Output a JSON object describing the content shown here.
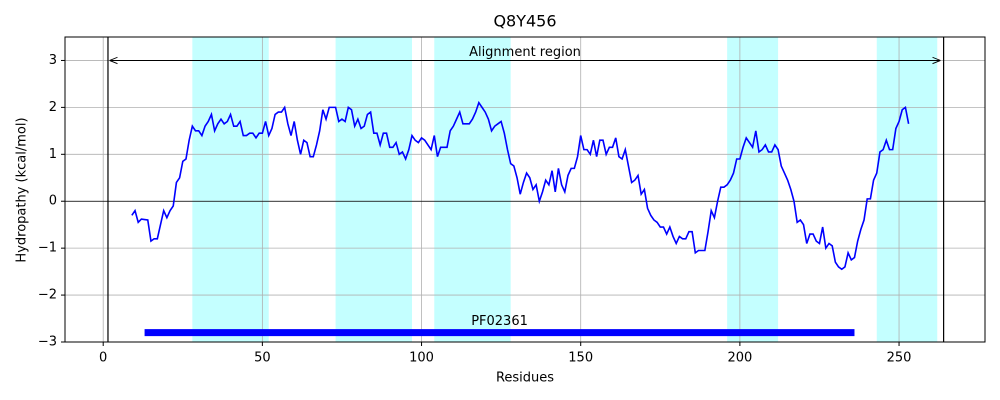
{
  "chart_data": {
    "type": "line",
    "title": "Q8Y456",
    "xlabel": "Residues",
    "ylabel": "Hydropathy (kcal/mol)",
    "x": [
      9,
      10,
      11,
      12,
      13,
      14,
      15,
      16,
      17,
      18,
      19,
      20,
      21,
      22,
      23,
      24,
      25,
      26,
      27,
      28,
      29,
      30,
      31,
      32,
      33,
      34,
      35,
      36,
      37,
      38,
      39,
      40,
      41,
      42,
      43,
      44,
      45,
      46,
      47,
      48,
      49,
      50,
      51,
      52,
      53,
      54,
      55,
      56,
      57,
      58,
      59,
      60,
      61,
      62,
      63,
      64,
      65,
      66,
      67,
      68,
      69,
      70,
      71,
      72,
      73,
      74,
      75,
      76,
      77,
      78,
      79,
      80,
      81,
      82,
      83,
      84,
      85,
      86,
      87,
      88,
      89,
      90,
      91,
      92,
      93,
      94,
      95,
      96,
      97,
      98,
      99,
      100,
      101,
      102,
      103,
      104,
      105,
      106,
      107,
      108,
      109,
      110,
      111,
      112,
      113,
      114,
      115,
      116,
      117,
      118,
      119,
      120,
      121,
      122,
      123,
      124,
      125,
      126,
      127,
      128,
      129,
      130,
      131,
      132,
      133,
      134,
      135,
      136,
      137,
      138,
      139,
      140,
      141,
      142,
      143,
      144,
      145,
      146,
      147,
      148,
      149,
      150,
      151,
      152,
      153,
      154,
      155,
      156,
      157,
      158,
      159,
      160,
      161,
      162,
      163,
      164,
      165,
      166,
      167,
      168,
      169,
      170,
      171,
      172,
      173,
      174,
      175,
      176,
      177,
      178,
      179,
      180,
      181,
      182,
      183,
      184,
      185,
      186,
      187,
      188,
      189,
      190,
      191,
      192,
      193,
      194,
      195,
      196,
      197,
      198,
      199,
      200,
      201,
      202,
      203,
      204,
      205,
      206,
      207,
      208,
      209,
      210,
      211,
      212,
      213,
      214,
      215,
      216,
      217,
      218,
      219,
      220,
      221,
      222,
      223,
      224,
      225,
      226,
      227,
      228,
      229,
      230,
      231,
      232,
      233,
      234,
      235,
      236,
      237,
      238,
      239,
      240,
      241,
      242,
      243,
      244,
      245,
      246,
      247,
      248,
      249,
      250,
      251,
      252,
      253
    ],
    "series": [
      {
        "color": "#0000ff",
        "values": [
          -0.3,
          -0.2,
          -0.45,
          -0.38,
          -0.39,
          -0.4,
          -0.85,
          -0.8,
          -0.8,
          -0.5,
          -0.2,
          -0.35,
          -0.2,
          -0.1,
          0.4,
          0.5,
          0.85,
          0.9,
          1.3,
          1.6,
          1.5,
          1.5,
          1.4,
          1.6,
          1.7,
          1.85,
          1.5,
          1.65,
          1.75,
          1.65,
          1.7,
          1.85,
          1.6,
          1.6,
          1.7,
          1.4,
          1.4,
          1.45,
          1.45,
          1.35,
          1.45,
          1.45,
          1.7,
          1.4,
          1.55,
          1.85,
          1.9,
          1.9,
          2.0,
          1.65,
          1.4,
          1.7,
          1.3,
          1.0,
          1.3,
          1.25,
          0.95,
          0.95,
          1.2,
          1.5,
          1.95,
          1.75,
          2.0,
          2.0,
          2.0,
          1.7,
          1.75,
          1.7,
          2.0,
          1.95,
          1.6,
          1.75,
          1.55,
          1.6,
          1.85,
          1.9,
          1.45,
          1.45,
          1.2,
          1.45,
          1.45,
          1.15,
          1.15,
          1.25,
          1.0,
          1.05,
          0.9,
          1.1,
          1.4,
          1.3,
          1.25,
          1.35,
          1.3,
          1.2,
          1.1,
          1.4,
          0.95,
          1.15,
          1.15,
          1.15,
          1.5,
          1.6,
          1.75,
          1.9,
          1.65,
          1.65,
          1.65,
          1.75,
          1.9,
          2.1,
          2.0,
          1.9,
          1.75,
          1.5,
          1.6,
          1.65,
          1.7,
          1.45,
          1.1,
          0.8,
          0.75,
          0.5,
          0.15,
          0.4,
          0.6,
          0.5,
          0.25,
          0.35,
          0.0,
          0.2,
          0.45,
          0.35,
          0.65,
          0.2,
          0.7,
          0.35,
          0.2,
          0.55,
          0.7,
          0.7,
          0.95,
          1.4,
          1.1,
          1.1,
          1.0,
          1.3,
          0.95,
          1.3,
          1.3,
          1.0,
          1.15,
          1.15,
          1.35,
          0.95,
          0.9,
          1.1,
          0.75,
          0.4,
          0.45,
          0.55,
          0.15,
          0.25,
          -0.15,
          -0.3,
          -0.4,
          -0.45,
          -0.55,
          -0.55,
          -0.7,
          -0.55,
          -0.75,
          -0.9,
          -0.75,
          -0.8,
          -0.8,
          -0.65,
          -0.65,
          -1.1,
          -1.05,
          -1.05,
          -1.05,
          -0.65,
          -0.2,
          -0.35,
          0.0,
          0.3,
          0.3,
          0.35,
          0.45,
          0.6,
          0.9,
          0.9,
          1.15,
          1.35,
          1.25,
          1.15,
          1.5,
          1.05,
          1.1,
          1.2,
          1.05,
          1.05,
          1.2,
          1.1,
          0.75,
          0.6,
          0.45,
          0.25,
          0.0,
          -0.45,
          -0.4,
          -0.5,
          -0.9,
          -0.7,
          -0.7,
          -0.85,
          -0.9,
          -0.55,
          -1.0,
          -0.9,
          -0.95,
          -1.3,
          -1.4,
          -1.45,
          -1.4,
          -1.1,
          -1.25,
          -1.2,
          -0.85,
          -0.6,
          -0.4,
          0.05,
          0.05,
          0.45,
          0.6,
          1.05,
          1.1,
          1.3,
          1.1,
          1.1,
          1.55,
          1.7,
          1.95,
          2.0,
          1.65
        ]
      }
    ],
    "xlim": [
      -12,
      277
    ],
    "ylim": [
      -3,
      3.5
    ],
    "xticks": [
      0,
      50,
      100,
      150,
      200,
      250
    ],
    "yticks": [
      {
        "value": -3,
        "label": "−3"
      },
      {
        "value": -2,
        "label": "−2"
      },
      {
        "value": -1,
        "label": "−1"
      },
      0,
      1,
      2,
      3
    ],
    "grid": true,
    "hline": 0,
    "regions": {
      "color": "#c4ffff",
      "spans": [
        [
          28,
          52
        ],
        [
          73,
          97
        ],
        [
          104,
          128
        ],
        [
          196,
          212
        ],
        [
          243,
          262
        ]
      ]
    },
    "boundaries": [
      1.5,
      264
    ],
    "alignment": {
      "label": "Alignment region",
      "start": 2,
      "end": 263,
      "y": 3
    },
    "domains": [
      {
        "name": "PF02361",
        "start": 13,
        "end": 236,
        "y": -2.8,
        "color": "#0000ff"
      }
    ]
  }
}
